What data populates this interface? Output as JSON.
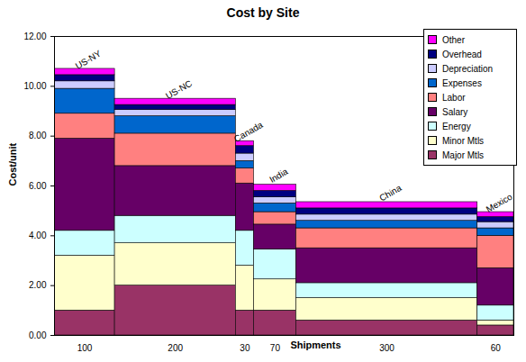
{
  "chart_data": {
    "type": "bar",
    "title": "Cost by Site",
    "x_label": "Shipments",
    "y_label": "Cost/unit",
    "stacked": true,
    "legend": "upper right",
    "categories": [
      "US-NY",
      "US-NC",
      "Canada",
      "India",
      "China",
      "Mexico"
    ],
    "shipments": [
      100,
      200,
      30,
      70,
      300,
      60
    ],
    "ylim": [
      0,
      12
    ],
    "yticks": [
      {
        "value": 0,
        "label": "0.00"
      },
      {
        "value": 2,
        "label": "2.00"
      },
      {
        "value": 4,
        "label": "4.00"
      },
      {
        "value": 6,
        "label": "6.00"
      },
      {
        "value": 8,
        "label": "8.00"
      },
      {
        "value": 10,
        "label": "10.00"
      },
      {
        "value": 12,
        "label": "12.00"
      }
    ],
    "series": [
      {
        "name": "Major Mtls",
        "color": "#993366",
        "values": [
          1.0,
          2.0,
          1.0,
          1.0,
          0.6,
          0.4
        ]
      },
      {
        "name": "Minor Mtls",
        "color": "#ffffcc",
        "values": [
          2.2,
          1.7,
          1.8,
          1.25,
          0.9,
          0.2
        ]
      },
      {
        "name": "Energy",
        "color": "#ccffff",
        "values": [
          1.0,
          1.1,
          1.4,
          1.2,
          0.6,
          0.6
        ]
      },
      {
        "name": "Salary",
        "color": "#660066",
        "values": [
          3.7,
          2.0,
          1.9,
          1.0,
          1.4,
          1.5
        ]
      },
      {
        "name": "Labor",
        "color": "#ff8080",
        "values": [
          1.0,
          1.3,
          0.6,
          0.5,
          0.8,
          1.3
        ]
      },
      {
        "name": "Expenses",
        "color": "#0066cc",
        "values": [
          1.0,
          0.7,
          0.3,
          0.35,
          0.3,
          0.3
        ]
      },
      {
        "name": "Depreciation",
        "color": "#ccccff",
        "values": [
          0.3,
          0.25,
          0.3,
          0.25,
          0.25,
          0.25
        ]
      },
      {
        "name": "Overhead",
        "color": "#000080",
        "values": [
          0.25,
          0.2,
          0.3,
          0.25,
          0.25,
          0.2
        ]
      },
      {
        "name": "Other",
        "color": "#ff00ff",
        "values": [
          0.25,
          0.25,
          0.2,
          0.25,
          0.25,
          0.2
        ]
      }
    ]
  }
}
